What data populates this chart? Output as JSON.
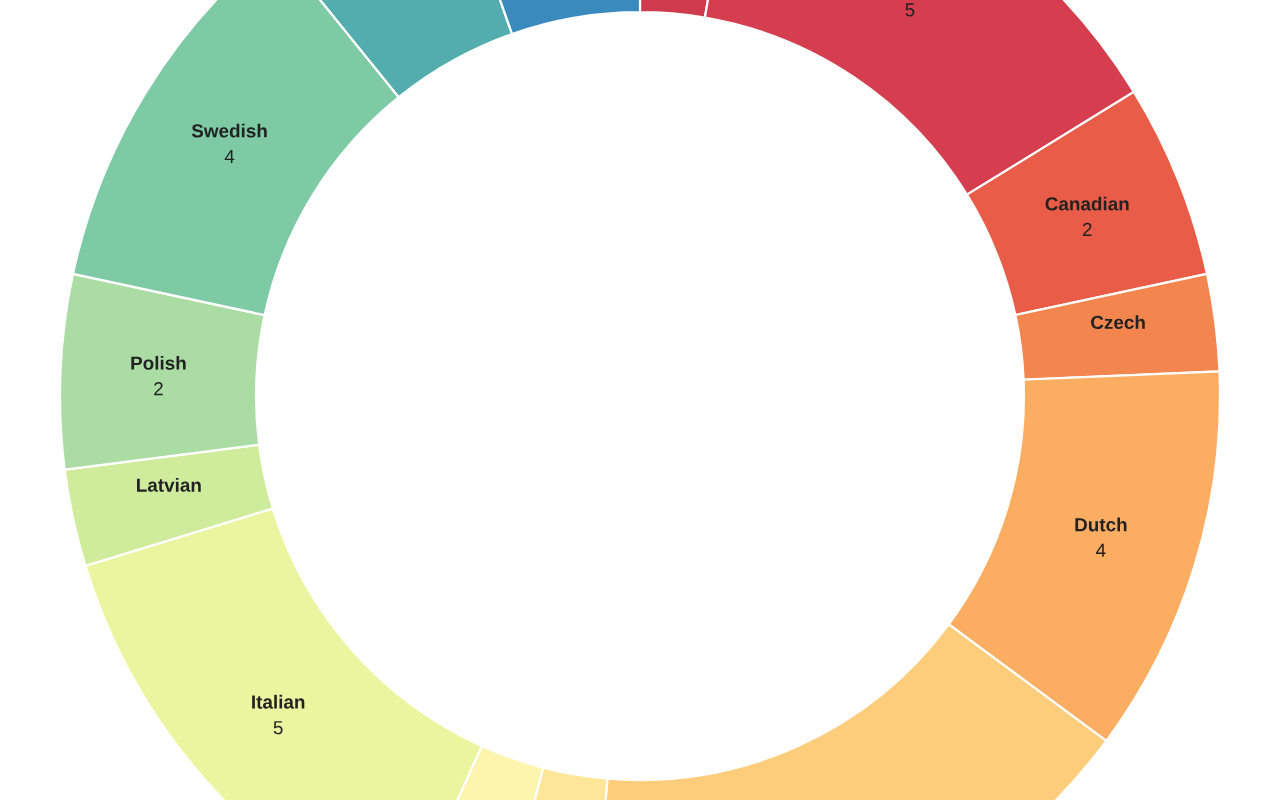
{
  "chart_data": {
    "type": "donut",
    "categories": [
      null,
      null,
      "Canadian",
      "Czech",
      "Dutch",
      null,
      null,
      null,
      "Italian",
      "Latvian",
      "Polish",
      "Swedish",
      null,
      null
    ],
    "values": [
      1,
      5,
      2,
      1,
      4,
      6,
      1,
      1,
      5,
      1,
      2,
      4,
      2,
      2
    ],
    "value_labels": [
      null,
      "5",
      "2",
      null,
      "4",
      null,
      null,
      null,
      "5",
      null,
      "2",
      "4",
      null,
      null
    ],
    "colors": [
      "#cf3a4c",
      "#d53e4f",
      "#e95c47",
      "#f3854e",
      "#fbad61",
      "#fecd7c",
      "#fee698",
      "#fdf5ad",
      "#eaf69f",
      "#cfec9c",
      "#aadca3",
      "#7dcaa5",
      "#53adaf",
      "#3b8abe"
    ]
  }
}
